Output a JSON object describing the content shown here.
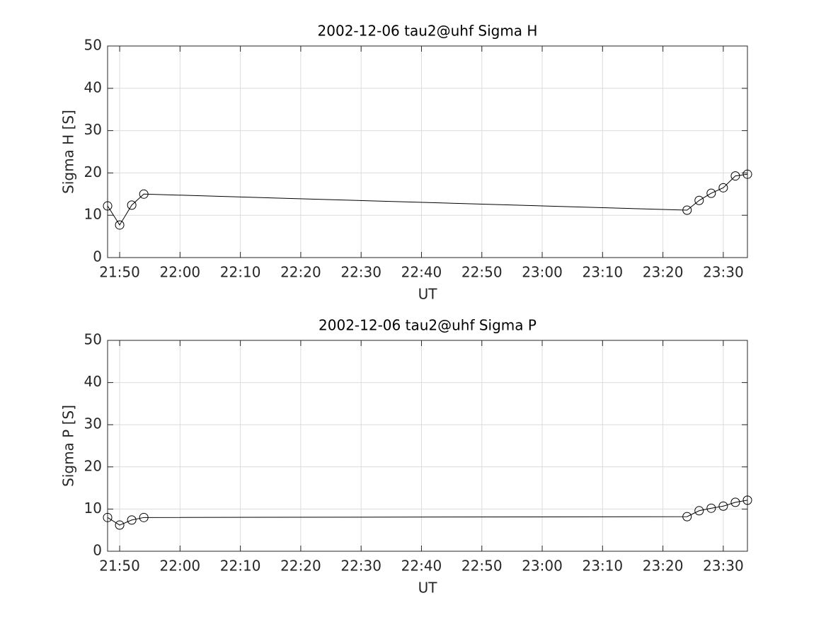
{
  "chart_data": [
    {
      "type": "line",
      "title": "2002-12-06  tau2@uhf Sigma H",
      "x_label": "UT",
      "y_label": "Sigma H [S]",
      "x": [
        "21:48",
        "21:50",
        "21:52",
        "21:54",
        "23:24",
        "23:26",
        "23:28",
        "23:30",
        "23:32",
        "23:34"
      ],
      "series": [
        {
          "color": "#000000",
          "values": [
            12.2,
            7.7,
            12.4,
            15,
            11.2,
            13.5,
            15.2,
            16.5,
            19.3,
            19.7
          ]
        }
      ],
      "xlim": [
        "21:48",
        "23:34"
      ],
      "xticks": [
        "21:50",
        "22:00",
        "22:10",
        "22:20",
        "22:30",
        "22:40",
        "22:50",
        "23:00",
        "23:10",
        "23:20",
        "23:30"
      ],
      "ylim": [
        0,
        50
      ],
      "yticks": [
        0,
        10,
        20,
        30,
        40,
        50
      ],
      "grid": true
    },
    {
      "type": "line",
      "title": "2002-12-06  tau2@uhf Sigma P",
      "x_label": "UT",
      "y_label": "Sigma P [S]",
      "x": [
        "21:48",
        "21:50",
        "21:52",
        "21:54",
        "23:24",
        "23:26",
        "23:28",
        "23:30",
        "23:32",
        "23:34"
      ],
      "series": [
        {
          "color": "#000000",
          "values": [
            8.0,
            6.2,
            7.4,
            8.0,
            8.2,
            9.6,
            10.2,
            10.7,
            11.6,
            12.1
          ]
        }
      ],
      "xlim": [
        "21:48",
        "23:34"
      ],
      "xticks": [
        "21:50",
        "22:00",
        "22:10",
        "22:20",
        "22:30",
        "22:40",
        "22:50",
        "23:00",
        "23:10",
        "23:20",
        "23:30"
      ],
      "ylim": [
        0,
        50
      ],
      "yticks": [
        0,
        10,
        20,
        30,
        40,
        50
      ],
      "grid": true
    }
  ]
}
